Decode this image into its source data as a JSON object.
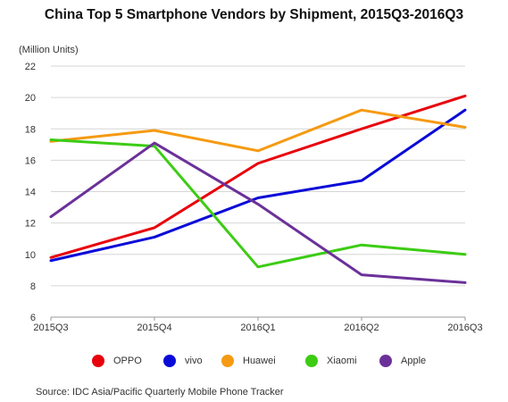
{
  "chart_data": {
    "type": "line",
    "title": "China Top 5 Smartphone Vendors by Shipment, 2015Q3-2016Q3",
    "ylabel": "(Million Units)",
    "xlabel": "",
    "categories": [
      "2015Q3",
      "2015Q4",
      "2016Q1",
      "2016Q2",
      "2016Q3"
    ],
    "ylim": [
      6,
      22
    ],
    "yticks": [
      6,
      8,
      10,
      12,
      14,
      16,
      18,
      20,
      22
    ],
    "grid": true,
    "legend_position": "bottom",
    "series": [
      {
        "name": "OPPO",
        "color": "#e8000b",
        "values": [
          9.8,
          11.7,
          15.8,
          18.0,
          20.1
        ]
      },
      {
        "name": "vivo",
        "color": "#0a0ad8",
        "values": [
          9.6,
          11.1,
          13.6,
          14.7,
          19.2
        ]
      },
      {
        "name": "Huawei",
        "color": "#f59a12",
        "values": [
          17.2,
          17.9,
          16.6,
          19.2,
          18.1
        ]
      },
      {
        "name": "Xiaomi",
        "color": "#3ccc14",
        "values": [
          17.3,
          16.9,
          9.2,
          10.6,
          10.0
        ]
      },
      {
        "name": "Apple",
        "color": "#6b3199",
        "values": [
          12.4,
          17.1,
          13.2,
          8.7,
          8.2
        ]
      }
    ],
    "source": "Source: IDC Asia/Pacific Quarterly Mobile Phone Tracker"
  }
}
